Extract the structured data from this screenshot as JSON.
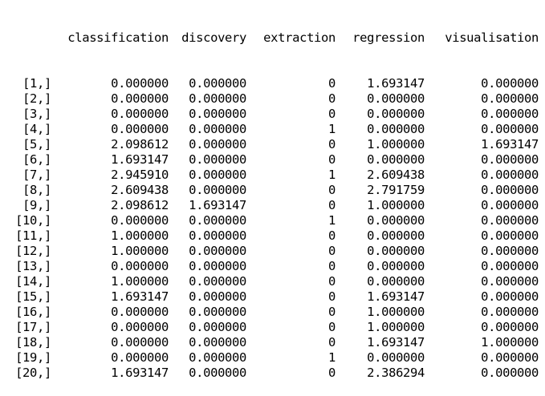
{
  "matrix": {
    "columns": [
      "",
      "classification",
      "discovery",
      "extraction",
      "regression",
      "visualisation"
    ],
    "rows": [
      [
        "[1,]",
        "0.000000",
        "0.000000",
        "0",
        "1.693147",
        "0.000000"
      ],
      [
        "[2,]",
        "0.000000",
        "0.000000",
        "0",
        "0.000000",
        "0.000000"
      ],
      [
        "[3,]",
        "0.000000",
        "0.000000",
        "0",
        "0.000000",
        "0.000000"
      ],
      [
        "[4,]",
        "0.000000",
        "0.000000",
        "1",
        "0.000000",
        "0.000000"
      ],
      [
        "[5,]",
        "2.098612",
        "0.000000",
        "0",
        "1.000000",
        "1.693147"
      ],
      [
        "[6,]",
        "1.693147",
        "0.000000",
        "0",
        "0.000000",
        "0.000000"
      ],
      [
        "[7,]",
        "2.945910",
        "0.000000",
        "1",
        "2.609438",
        "0.000000"
      ],
      [
        "[8,]",
        "2.609438",
        "0.000000",
        "0",
        "2.791759",
        "0.000000"
      ],
      [
        "[9,]",
        "2.098612",
        "1.693147",
        "0",
        "1.000000",
        "0.000000"
      ],
      [
        "[10,]",
        "0.000000",
        "0.000000",
        "1",
        "0.000000",
        "0.000000"
      ],
      [
        "[11,]",
        "1.000000",
        "0.000000",
        "0",
        "0.000000",
        "0.000000"
      ],
      [
        "[12,]",
        "1.000000",
        "0.000000",
        "0",
        "0.000000",
        "0.000000"
      ],
      [
        "[13,]",
        "0.000000",
        "0.000000",
        "0",
        "0.000000",
        "0.000000"
      ],
      [
        "[14,]",
        "1.000000",
        "0.000000",
        "0",
        "0.000000",
        "0.000000"
      ],
      [
        "[15,]",
        "1.693147",
        "0.000000",
        "0",
        "1.693147",
        "0.000000"
      ],
      [
        "[16,]",
        "0.000000",
        "0.000000",
        "0",
        "1.000000",
        "0.000000"
      ],
      [
        "[17,]",
        "0.000000",
        "0.000000",
        "0",
        "1.000000",
        "0.000000"
      ],
      [
        "[18,]",
        "0.000000",
        "0.000000",
        "0",
        "1.693147",
        "1.000000"
      ],
      [
        "[19,]",
        "0.000000",
        "0.000000",
        "1",
        "0.000000",
        "0.000000"
      ],
      [
        "[20,]",
        "1.693147",
        "0.000000",
        "0",
        "2.386294",
        "0.000000"
      ]
    ]
  }
}
